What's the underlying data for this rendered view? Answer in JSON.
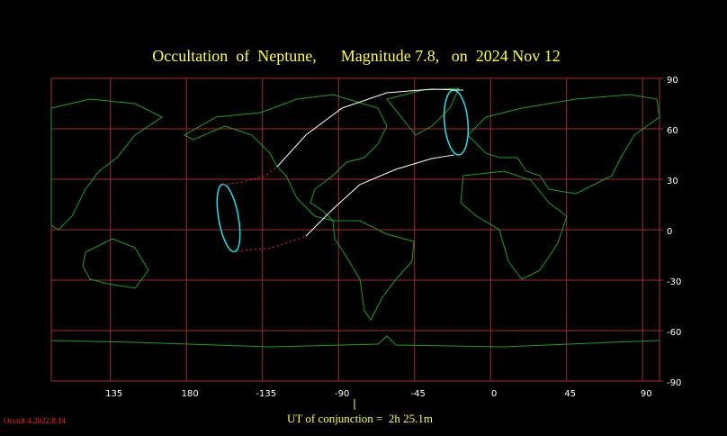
{
  "chart_data": {
    "type": "map",
    "title": "Occultation  of  Neptune,      Magnitude 7.8,   on  2024 Nov 12",
    "footer": "UT of conjunction =  2h 25.1m",
    "credit": "Occult 4.2022.8.14",
    "xlim": [
      100,
      460
    ],
    "ylim": [
      -90,
      90
    ],
    "xticks": [
      135,
      180,
      {
        "value": 225,
        "label": "-135"
      },
      {
        "value": 270,
        "label": "-90"
      },
      {
        "value": 315,
        "label": "-45"
      },
      {
        "value": 360,
        "label": "0"
      },
      {
        "value": 405,
        "label": "45"
      },
      {
        "value": 450,
        "label": "90"
      }
    ],
    "yticks": [
      90,
      60,
      30,
      0,
      -30,
      -60,
      -90
    ],
    "grid": true,
    "grid_color": "#a03030",
    "lines": [
      {
        "color": "#ffffff",
        "style": "solid",
        "x": [
          233.7,
          250.7,
          272,
          298.6,
          325.2,
          343.9
        ],
        "y": [
          37.5,
          56.3,
          72.3,
          81.4,
          83.6,
          83
        ]
      },
      {
        "color": "#ffffff",
        "style": "solid",
        "x": [
          250.7,
          266.7,
          282.6,
          303.9,
          325.2,
          338.5
        ],
        "y": [
          -3.8,
          12.3,
          26.8,
          35.9,
          42.3,
          44.5
        ]
      },
      {
        "color": "#ff2020",
        "style": "dotted",
        "x": [
          201.7,
          214,
          226.7,
          233.7
        ],
        "y": [
          26.8,
          28.5,
          32.1,
          37.5
        ]
      },
      {
        "color": "#ff2020",
        "style": "dotted",
        "x": [
          212.4,
          230,
          250.7
        ],
        "y": [
          -12.3,
          -11,
          -3.8
        ]
      }
    ]
  }
}
